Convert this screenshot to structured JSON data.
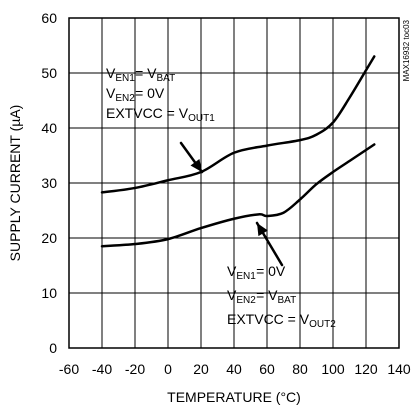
{
  "chart_data": {
    "type": "line",
    "title": "",
    "xlabel": "TEMPERATURE (°C)",
    "ylabel": "SUPPLY CURRENT (µA)",
    "xlim": [
      -60,
      140
    ],
    "ylim": [
      0,
      60
    ],
    "xticks": [
      -60,
      -40,
      -20,
      0,
      20,
      40,
      60,
      80,
      100,
      120,
      140
    ],
    "yticks": [
      0,
      10,
      20,
      30,
      40,
      50,
      60
    ],
    "grid": true,
    "series": [
      {
        "x": [
          -40,
          -20,
          0,
          20,
          40,
          60,
          80,
          90,
          100,
          110,
          120,
          125
        ],
        "y": [
          28.3,
          29.1,
          30.5,
          32.0,
          35.5,
          36.8,
          37.8,
          38.8,
          41.0,
          45.5,
          50.5,
          53.0
        ]
      },
      {
        "x": [
          -40,
          -20,
          0,
          20,
          40,
          55,
          60,
          70,
          80,
          90,
          100,
          110,
          120,
          125
        ],
        "y": [
          18.5,
          18.9,
          19.8,
          21.8,
          23.5,
          24.3,
          24.0,
          24.6,
          27.0,
          29.8,
          32.0,
          34.0,
          36.0,
          37.0
        ]
      }
    ],
    "annotations": [
      {
        "lines": [
          {
            "main": "V",
            "sub": "EN1",
            "rest": " = V",
            "sub2": "BAT"
          },
          {
            "main": "V",
            "sub": "EN2",
            "rest": " = 0V",
            "sub2": ""
          },
          {
            "main": "EXTVCC = V",
            "sub": "OUT1",
            "rest": "",
            "sub2": ""
          }
        ]
      },
      {
        "lines": [
          {
            "main": "V",
            "sub": "EN1",
            "rest": " = 0V",
            "sub2": ""
          },
          {
            "main": "V",
            "sub": "EN2",
            "rest": " = V",
            "sub2": "BAT"
          },
          {
            "main": "EXTVCC = V",
            "sub": "OUT2",
            "rest": "",
            "sub2": ""
          }
        ]
      }
    ],
    "part_number": "MAX16932 toc03"
  }
}
